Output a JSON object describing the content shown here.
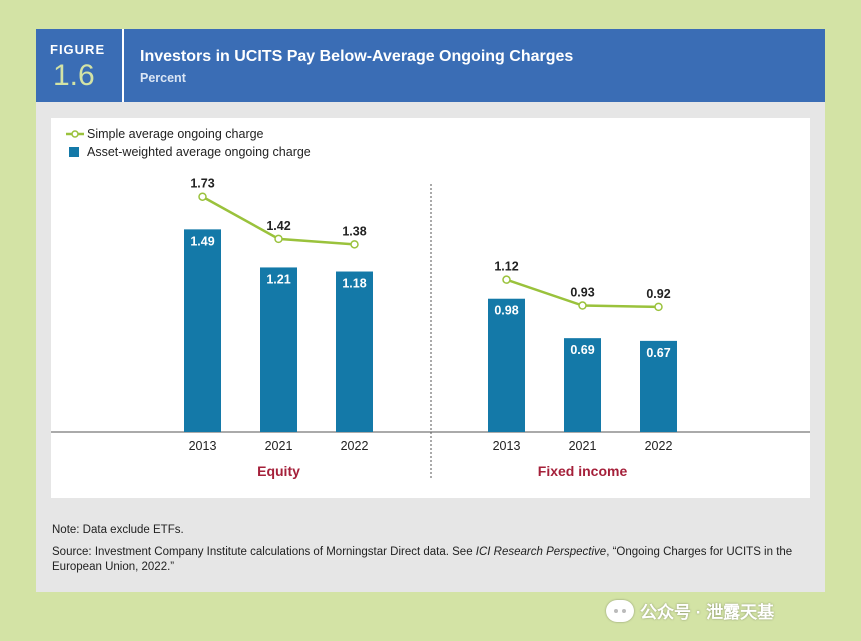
{
  "figure": {
    "label": "FIGURE",
    "number": "1.6",
    "title": "Investors in UCITS Pay Below-Average Ongoing Charges",
    "subtitle": "Percent"
  },
  "colors": {
    "line": "#9ac23c",
    "bar": "#1479a8",
    "group_label": "#a5203a",
    "header": "#3a6db5"
  },
  "chart_data": {
    "type": "bar",
    "title": "Investors in UCITS Pay Below-Average Ongoing Charges",
    "ylabel": "Percent",
    "ylim": [
      0,
      2
    ],
    "legend": [
      "Simple average ongoing charge",
      "Asset-weighted average ongoing charge"
    ],
    "legend_position": "top-left",
    "groups": [
      {
        "name": "Equity",
        "categories": [
          "2013",
          "2021",
          "2022"
        ],
        "series": [
          {
            "name": "Simple average ongoing charge",
            "kind": "line",
            "values": [
              1.73,
              1.42,
              1.38
            ],
            "labels": [
              "1.73",
              "1.42",
              "1.38"
            ]
          },
          {
            "name": "Asset-weighted average ongoing charge",
            "kind": "bar",
            "values": [
              1.49,
              1.21,
              1.18
            ],
            "labels": [
              "1.49",
              "1.21",
              "1.18"
            ]
          }
        ]
      },
      {
        "name": "Fixed income",
        "categories": [
          "2013",
          "2021",
          "2022"
        ],
        "series": [
          {
            "name": "Simple average ongoing charge",
            "kind": "line",
            "values": [
              1.12,
              0.93,
              0.92
            ],
            "labels": [
              "1.12",
              "0.93",
              "0.92"
            ]
          },
          {
            "name": "Asset-weighted average ongoing charge",
            "kind": "bar",
            "values": [
              0.98,
              0.69,
              0.67
            ],
            "labels": [
              "0.98",
              "0.69",
              "0.67"
            ]
          }
        ]
      }
    ]
  },
  "notes": {
    "note": "Note: Data exclude ETFs.",
    "source_prefix": "Source: Investment Company Institute calculations of Morningstar Direct data. See ",
    "source_italic": "ICI Research Perspective",
    "source_suffix": ", “Ongoing Charges for UCITS in the European Union, 2022.”"
  },
  "watermark": {
    "text": "公众号 · 泄露天基",
    "icon": "wechat-icon"
  }
}
